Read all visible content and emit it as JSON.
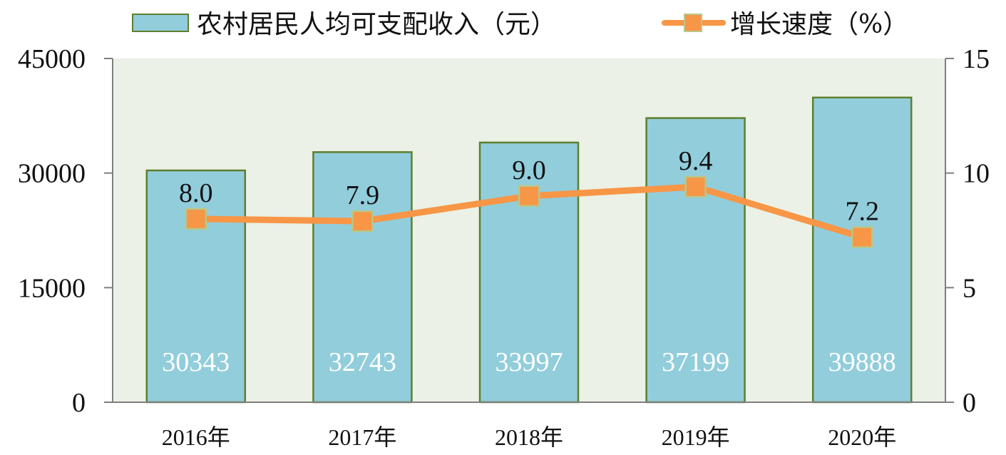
{
  "chart_data": {
    "type": "bar",
    "categories": [
      "2016年",
      "2017年",
      "2018年",
      "2019年",
      "2020年"
    ],
    "series": [
      {
        "name": "农村居民人均可支配收入（元）",
        "type": "bar",
        "axis": "left",
        "values": [
          30343,
          32743,
          33997,
          37199,
          39888
        ],
        "labels": [
          "30343",
          "32743",
          "33997",
          "37199",
          "39888"
        ]
      },
      {
        "name": "增长速度（%）",
        "type": "line",
        "axis": "right",
        "values": [
          8.0,
          7.9,
          9.0,
          9.4,
          7.2
        ],
        "labels": [
          "8.0",
          "7.9",
          "9.0",
          "9.4",
          "7.2"
        ]
      }
    ],
    "y_left": {
      "min": 0,
      "max": 45000,
      "ticks": [
        "0",
        "15000",
        "30000",
        "45000"
      ]
    },
    "y_right": {
      "min": 0,
      "max": 15,
      "ticks": [
        "0",
        "5",
        "10",
        "15"
      ]
    },
    "legend_position": "top",
    "grid": false,
    "colors": {
      "bar_fill": "#92CDDC",
      "bar_stroke": "#5E7F2E",
      "line": "#F79646",
      "marker_fill": "#F79646",
      "marker_stroke": "#B9C68A",
      "plot_background": "#EBF1E6",
      "axis": "#7F7F7F"
    }
  }
}
